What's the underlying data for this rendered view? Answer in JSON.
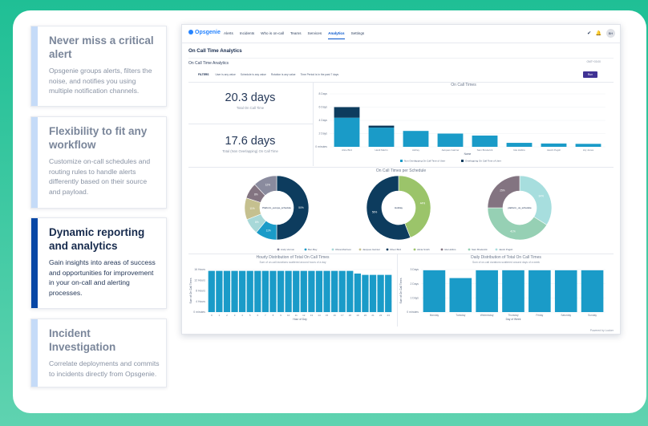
{
  "features": [
    {
      "title": "Never miss a critical alert",
      "desc": "Opsgenie groups alerts, filters the noise, and notifies you using multiple notification channels."
    },
    {
      "title": "Flexibility to fit any workflow",
      "desc": "Customize on-call schedules and routing rules to handle alerts differently based on their source and payload."
    },
    {
      "title": "Dynamic reporting and analytics",
      "desc": "Gain insights into areas of success and opportunities for improvement in your on-call and alerting processes."
    },
    {
      "title": "Incident Investigation",
      "desc": "Correlate deployments and commits to incidents directly from Opsgenie."
    }
  ],
  "app": {
    "logo": "Opsgenie",
    "nav": [
      "Alerts",
      "Incidents",
      "Who is on-call",
      "Teams",
      "Services",
      "Analytics",
      "Settings"
    ],
    "active_nav": "Analytics",
    "avatar": "BH",
    "notification_count": "1",
    "page_title": "On Call Time Analytics",
    "subtitle": "On Call Time Analytics",
    "tz_text": "GMT+03:00",
    "filters_label": "FILTERS",
    "filters": [
      "User is any value",
      "Schedule is any value",
      "Rotation is any value",
      "Time Period is in the past 7 days"
    ],
    "run_label": "Run",
    "stat1_value": "20.3 days",
    "stat1_label": "Total On Call Time",
    "stat2_value": "17.6 days",
    "stat2_label": "Total (Non Overlapping) On Call Time",
    "footer": "Powered by Looker",
    "colors": {
      "accent": "#0052cc",
      "teal": "#1a9bc8",
      "navy": "#0d3c5e",
      "green": "#9bc46a",
      "run": "#403294"
    }
  },
  "chart_data": [
    {
      "type": "bar",
      "title": "On Call Times",
      "xlabel": "Name",
      "categories": [
        "Alice Bird",
        "Heidi Martin",
        "Ashley",
        "Jacques Garnier",
        "Sam Broderick",
        "Isla Hollins",
        "Jacob Pugsh",
        "Lily Jones"
      ],
      "y_ticks": [
        "8 Days",
        "6 Days",
        "4 Days",
        "2 Days",
        "0 minutes"
      ],
      "ylim": [
        0,
        8
      ],
      "series": [
        {
          "name": "Non Overlapping On Call Time of User",
          "color": "#1a9bc8",
          "values": [
            4.4,
            2.9,
            2.4,
            2.0,
            1.7,
            0.6,
            0.5,
            0.45
          ]
        },
        {
          "name": "Overlapping On Call Time of User",
          "color": "#0d3c5e",
          "values": [
            1.6,
            0.3,
            0,
            0,
            0,
            0,
            0,
            0
          ]
        }
      ]
    },
    {
      "type": "pie",
      "title": "On Call Times per Schedule",
      "charts": [
        {
          "label": "Platform_europe_schedule",
          "slices": [
            {
              "name": "Andy Vernon",
              "value": 50,
              "label": "50%",
              "color": "#0d3c5e"
            },
            {
              "name": "Ben Bay",
              "value": 11,
              "label": "11%",
              "color": "#1a9bc8"
            },
            {
              "name": "Olivia Morrison",
              "value": 8,
              "label": "8%",
              "color": "#a7d8d8"
            },
            {
              "name": "Jacques Garnier",
              "value": 11,
              "label": "11%",
              "color": "#c5c08f"
            },
            {
              "name": "Ashley",
              "value": 8,
              "label": "8%",
              "color": "#837481"
            },
            {
              "name": "Lily Jones",
              "value": 12,
              "label": "12%",
              "color": "#8a8b9e"
            }
          ]
        },
        {
          "label": "Holiday",
          "slices": [
            {
              "name": "Alicia Smith",
              "value": 44,
              "label": "44%",
              "color": "#9bc46a"
            },
            {
              "name": "Oliver Bird",
              "value": 56,
              "label": "56%",
              "color": "#0d3c5e"
            }
          ]
        },
        {
          "label": "platform_us_schedule",
          "slices": [
            {
              "name": "Lily Jones",
              "value": 34,
              "label": "34%",
              "color": "#a7dede"
            },
            {
              "name": "Sam Broderick",
              "value": 41,
              "label": "41%",
              "color": "#96d0b4"
            },
            {
              "name": "Isla Hollins",
              "value": 25,
              "label": "25%",
              "color": "#837481"
            }
          ]
        }
      ],
      "legend": [
        {
          "name": "Andy Vernon",
          "color": "#8a8b9e"
        },
        {
          "name": "Ben Bay",
          "color": "#1a9bc8"
        },
        {
          "name": "Olivia Morrison",
          "color": "#a7d8d8"
        },
        {
          "name": "Jacques Garnier",
          "color": "#c5c08f"
        },
        {
          "name": "Oliver Bird",
          "color": "#0d3c5e"
        },
        {
          "name": "Alicia Smith",
          "color": "#9bc46a"
        },
        {
          "name": "Isla Hollins",
          "color": "#837481"
        },
        {
          "name": "Sam Broderick",
          "color": "#96d0b4"
        },
        {
          "name": "Jacob Pugsh",
          "color": "#a7dede"
        }
      ]
    },
    {
      "type": "bar",
      "title": "Hourly Distribution of Total On Call Times",
      "subtitle": "Sum of on-call durations scattered around hours of a day",
      "xlabel": "Hour of Day",
      "ylabel": "Sum of On Call Times",
      "y_ticks": [
        "16 Hours",
        "12 Hours",
        "8 Hours",
        "4 Hours",
        "0 minutes"
      ],
      "ylim": [
        0,
        16
      ],
      "categories": [
        "0",
        "1",
        "2",
        "3",
        "4",
        "5",
        "6",
        "7",
        "8",
        "9",
        "10",
        "11",
        "12",
        "13",
        "14",
        "15",
        "16",
        "17",
        "18",
        "19",
        "20",
        "21",
        "22",
        "23"
      ],
      "values": [
        15.5,
        15.5,
        15.5,
        15.5,
        15.5,
        15.5,
        15.5,
        15.5,
        15.5,
        15.5,
        15.5,
        15.5,
        15.5,
        15.5,
        15.5,
        15.5,
        15.5,
        15.5,
        15.5,
        14.5,
        14.0,
        14.0,
        14.0,
        14.0
      ],
      "color": "#1a9bc8"
    },
    {
      "type": "bar",
      "title": "Daily Distribution of Total On Call Times",
      "subtitle": "Sum of on-call durations scattered around days of a week",
      "xlabel": "Day of Week",
      "ylabel": "Sum of On Call Times",
      "y_ticks": [
        "3 Days",
        "2 Days",
        "1 Days",
        "0 minutes"
      ],
      "ylim": [
        0,
        3
      ],
      "categories": [
        "Monday",
        "Tuesday",
        "Wednesday",
        "Thursday",
        "Friday",
        "Saturday",
        "Sunday"
      ],
      "values": [
        2.95,
        2.4,
        2.95,
        2.95,
        2.95,
        2.95,
        2.95
      ],
      "color": "#1a9bc8"
    }
  ]
}
